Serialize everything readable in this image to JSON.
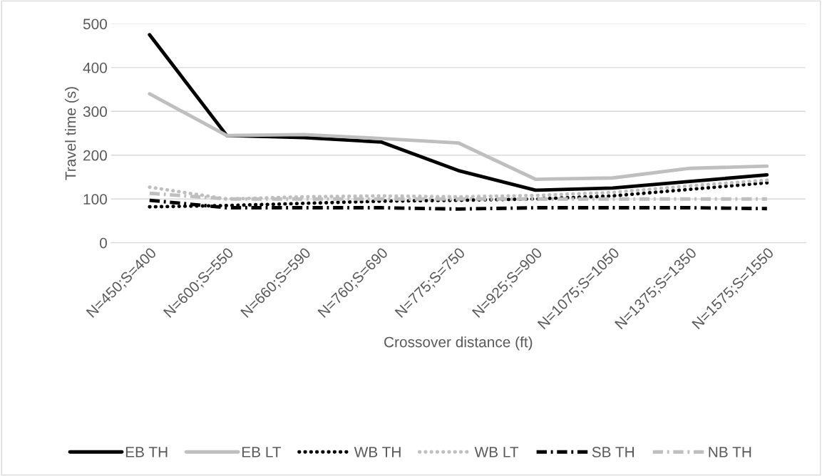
{
  "chart_data": {
    "type": "line",
    "xlabel": "Crossover distance (ft)",
    "ylabel": "Travel time (s)",
    "categories": [
      "N=450;S=400",
      "N=600;S=550",
      "N=660;S=590",
      "N=760;S=690",
      "N=775;S=750",
      "N=925;S=900",
      "N=1075;S=1050",
      "N=1375;S=1350",
      "N=1575;S=1550"
    ],
    "series": [
      {
        "name": "EB TH",
        "color": "#000000",
        "line_style": "solid",
        "values": [
          475,
          245,
          240,
          230,
          165,
          120,
          125,
          140,
          155
        ]
      },
      {
        "name": "EB LT",
        "color": "#bfbfbf",
        "line_style": "solid",
        "values": [
          340,
          245,
          247,
          238,
          228,
          145,
          148,
          170,
          175
        ]
      },
      {
        "name": "WB TH",
        "color": "#000000",
        "line_style": "dotted",
        "values": [
          82,
          85,
          90,
          95,
          97,
          100,
          107,
          122,
          137
        ]
      },
      {
        "name": "WB LT",
        "color": "#bfbfbf",
        "line_style": "dotted",
        "values": [
          127,
          100,
          105,
          107,
          105,
          108,
          115,
          130,
          143
        ]
      },
      {
        "name": "SB TH",
        "color": "#000000",
        "line_style": "dashdot",
        "values": [
          97,
          80,
          80,
          80,
          77,
          80,
          80,
          80,
          78
        ]
      },
      {
        "name": "NB TH",
        "color": "#bfbfbf",
        "line_style": "dashdot",
        "values": [
          113,
          100,
          100,
          100,
          100,
          100,
          100,
          100,
          100
        ]
      }
    ],
    "ylim": [
      0,
      500
    ],
    "yticks": [
      0,
      100,
      200,
      300,
      400,
      500
    ],
    "grid": "y",
    "legend": "bottom",
    "marker": "none"
  }
}
